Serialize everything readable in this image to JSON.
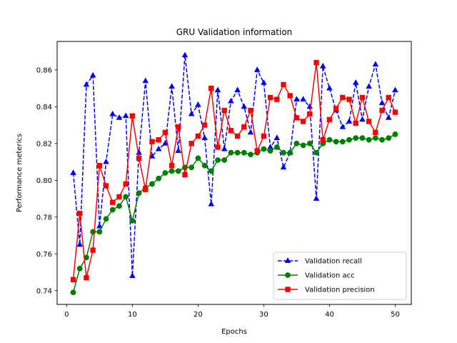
{
  "chart_data": {
    "type": "line",
    "title": "GRU Validation information",
    "xlabel": "Epochs",
    "ylabel": "Performance meterics",
    "xlim": [
      -1.45,
      52.45
    ],
    "ylim": [
      0.7325,
      0.8755
    ],
    "xticks": [
      0,
      10,
      20,
      30,
      40,
      50
    ],
    "yticks": [
      0.74,
      0.76,
      0.78,
      0.8,
      0.82,
      0.84,
      0.86
    ],
    "grid": false,
    "legend_position": "bottom-right",
    "x": [
      1,
      2,
      3,
      4,
      5,
      6,
      7,
      8,
      9,
      10,
      11,
      12,
      13,
      14,
      15,
      16,
      17,
      18,
      19,
      20,
      21,
      22,
      23,
      24,
      25,
      26,
      27,
      28,
      29,
      30,
      31,
      32,
      33,
      34,
      35,
      36,
      37,
      38,
      39,
      40,
      41,
      42,
      43,
      44,
      45,
      46,
      47,
      48,
      49,
      50
    ],
    "series": [
      {
        "name": "Validation recall",
        "color": "#0000ff",
        "linestyle": "dashed",
        "marker": "triangle",
        "values": [
          0.804,
          0.765,
          0.852,
          0.857,
          0.775,
          0.81,
          0.836,
          0.834,
          0.835,
          0.748,
          0.815,
          0.854,
          0.813,
          0.817,
          0.82,
          0.851,
          0.816,
          0.868,
          0.836,
          0.841,
          0.823,
          0.787,
          0.849,
          0.817,
          0.843,
          0.849,
          0.84,
          0.826,
          0.86,
          0.853,
          0.818,
          0.823,
          0.807,
          0.815,
          0.844,
          0.844,
          0.84,
          0.79,
          0.862,
          0.85,
          0.838,
          0.829,
          0.832,
          0.853,
          0.833,
          0.851,
          0.863,
          0.842,
          0.834,
          0.849
        ]
      },
      {
        "name": "Validation acc",
        "color": "#008000",
        "linestyle": "solid",
        "marker": "circle",
        "values": [
          0.739,
          0.752,
          0.758,
          0.772,
          0.772,
          0.779,
          0.784,
          0.786,
          0.791,
          0.778,
          0.793,
          0.796,
          0.798,
          0.801,
          0.804,
          0.805,
          0.805,
          0.807,
          0.807,
          0.812,
          0.808,
          0.805,
          0.811,
          0.811,
          0.815,
          0.815,
          0.815,
          0.814,
          0.815,
          0.817,
          0.816,
          0.818,
          0.815,
          0.815,
          0.82,
          0.819,
          0.82,
          0.815,
          0.82,
          0.822,
          0.821,
          0.821,
          0.822,
          0.823,
          0.823,
          0.822,
          0.823,
          0.822,
          0.823,
          0.825
        ]
      },
      {
        "name": "Validation precision",
        "color": "#ff0000",
        "linestyle": "solid",
        "marker": "square",
        "values": [
          0.746,
          0.782,
          0.747,
          0.762,
          0.808,
          0.797,
          0.788,
          0.791,
          0.798,
          0.835,
          0.812,
          0.795,
          0.821,
          0.822,
          0.826,
          0.808,
          0.829,
          0.803,
          0.82,
          0.824,
          0.83,
          0.85,
          0.818,
          0.838,
          0.827,
          0.824,
          0.829,
          0.838,
          0.816,
          0.824,
          0.845,
          0.844,
          0.852,
          0.846,
          0.834,
          0.832,
          0.836,
          0.864,
          0.822,
          0.833,
          0.839,
          0.845,
          0.844,
          0.831,
          0.845,
          0.832,
          0.826,
          0.838,
          0.845,
          0.837
        ]
      }
    ]
  }
}
